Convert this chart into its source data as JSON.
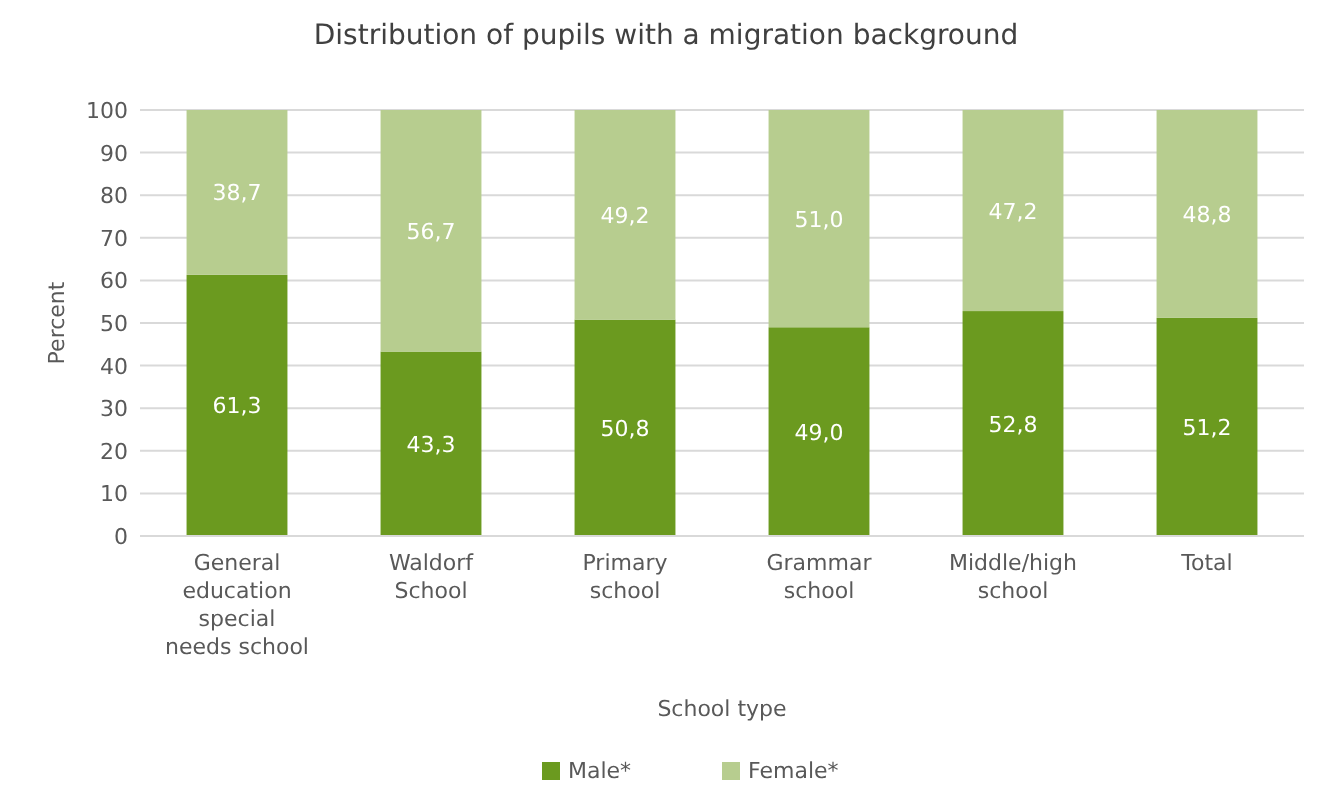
{
  "chart_data": {
    "type": "bar",
    "stacked": true,
    "title": "Distribution of pupils with a migration background",
    "xlabel": "School type",
    "ylabel": "Percent",
    "categories": [
      "General education special needs school",
      "Waldorf School",
      "Primary school",
      "Grammar school",
      "Middle/high school",
      "Total"
    ],
    "series": [
      {
        "name": "Male*",
        "color": "#6b9a1f",
        "values": [
          61.3,
          43.3,
          50.8,
          49.0,
          52.8,
          51.2
        ],
        "value_labels": [
          "61,3",
          "43,3",
          "50,8",
          "49,0",
          "52,8",
          "51,2"
        ]
      },
      {
        "name": "Female*",
        "color": "#b7cd8f",
        "values": [
          38.7,
          56.7,
          49.2,
          51.0,
          47.2,
          48.8
        ],
        "value_labels": [
          "38,7",
          "56,7",
          "49,2",
          "51,0",
          "47,2",
          "48,8"
        ]
      }
    ],
    "ylim": [
      0,
      100
    ],
    "yticks": [
      0,
      10,
      20,
      30,
      40,
      50,
      60,
      70,
      80,
      90,
      100
    ],
    "grid": "y",
    "legend": "bottom"
  }
}
